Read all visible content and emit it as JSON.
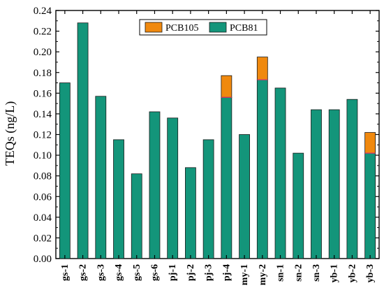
{
  "chart_data": {
    "type": "bar",
    "stacked": true,
    "categories": [
      "gs-1",
      "gs-2",
      "gs-3",
      "gs-4",
      "gs-5",
      "gs-6",
      "pj-1",
      "pj-2",
      "pj-3",
      "pj-4",
      "my-1",
      "my-2",
      "sn-1",
      "sn-2",
      "sn-3",
      "yb-1",
      "yb-2",
      "yb-3"
    ],
    "series": [
      {
        "name": "PCB81",
        "color": "#13957a",
        "values": [
          0.17,
          0.228,
          0.157,
          0.115,
          0.082,
          0.142,
          0.136,
          0.088,
          0.115,
          0.156,
          0.12,
          0.173,
          0.165,
          0.102,
          0.144,
          0.144,
          0.154,
          0.102
        ]
      },
      {
        "name": "PCB105",
        "color": "#f0890e",
        "values": [
          0,
          0,
          0,
          0,
          0,
          0,
          0,
          0,
          0,
          0.021,
          0,
          0.022,
          0,
          0,
          0,
          0,
          0,
          0.02
        ]
      }
    ],
    "legend_order": [
      "PCB105",
      "PCB81"
    ],
    "ylabel": "TEQs (ng/L)",
    "xlabel": "",
    "ylim": [
      0,
      0.24
    ],
    "yticks": [
      "0.00",
      "0.02",
      "0.04",
      "0.06",
      "0.08",
      "0.10",
      "0.12",
      "0.14",
      "0.16",
      "0.18",
      "0.20",
      "0.22",
      "0.24"
    ],
    "grid": false,
    "legend_position": "top-center"
  }
}
